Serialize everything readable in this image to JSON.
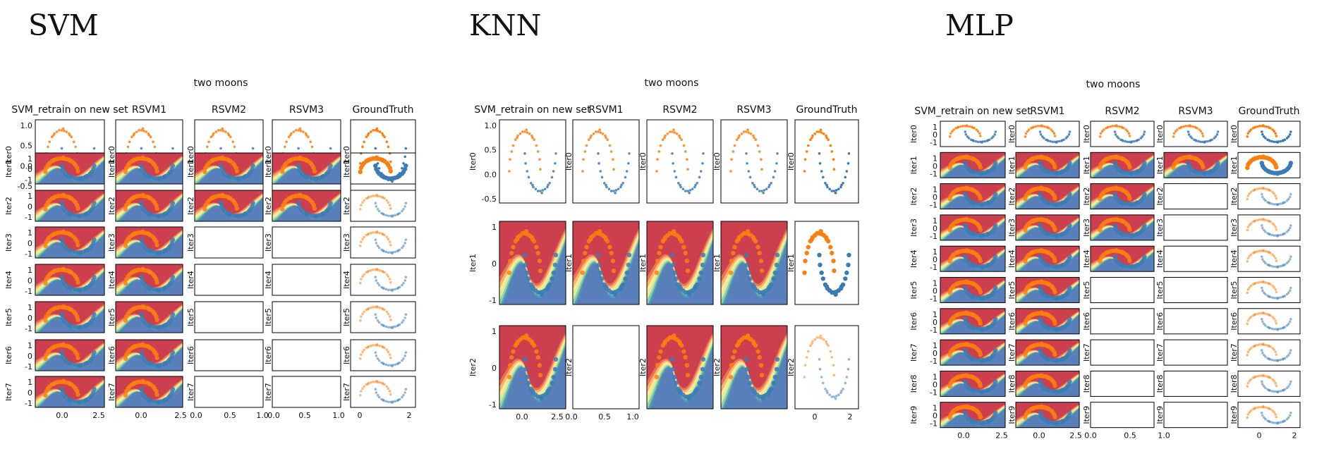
{
  "figure_title": "two moons",
  "column_titles": [
    "SVM_retrain on new set",
    "RSVM1",
    "RSVM2",
    "RSVM3",
    "GroundTruth"
  ],
  "colors": {
    "class0": "#ff7f0e",
    "class1": "#3b7bb5",
    "cmap": [
      "#cc3f4e",
      "#e8734f",
      "#f9b472",
      "#fde99a",
      "#d7ef9b",
      "#8fcfa5",
      "#4f9fb4",
      "#5a80bb"
    ]
  },
  "panels": [
    {
      "id": "svm",
      "heading": "SVM",
      "rows": [
        "Iter0",
        "Iter1",
        "Iter2",
        "Iter3",
        "Iter4",
        "Iter5",
        "Iter6",
        "Iter7"
      ],
      "filled": {
        "Iter0": [
          1,
          1,
          1,
          1,
          1
        ],
        "Iter1": [
          1,
          1,
          1,
          1,
          1
        ],
        "Iter2": [
          1,
          1,
          1,
          1,
          1
        ],
        "Iter3": [
          1,
          1,
          0,
          0,
          1
        ],
        "Iter4": [
          1,
          1,
          0,
          0,
          1
        ],
        "Iter5": [
          1,
          1,
          0,
          0,
          1
        ],
        "Iter6": [
          1,
          1,
          0,
          0,
          1
        ],
        "Iter7": [
          1,
          1,
          0,
          0,
          1
        ]
      },
      "x_ticks": [
        "0.0",
        "2.5",
        "0.0",
        "2.5",
        "0.0",
        "0.5",
        "1.0",
        "0.0",
        "0.5",
        "1.0",
        "0",
        "2"
      ],
      "y_ticks_iter0": [
        "1.0",
        "0.5",
        "0.0",
        "-0.5"
      ],
      "y_ticks_small": [
        "1",
        "0",
        "-1"
      ]
    },
    {
      "id": "knn",
      "heading": "KNN",
      "rows": [
        "Iter0",
        "Iter1",
        "Iter2"
      ],
      "filled": {
        "Iter0": [
          1,
          1,
          1,
          1,
          1
        ],
        "Iter1": [
          1,
          1,
          1,
          1,
          1
        ],
        "Iter2": [
          1,
          0,
          1,
          1,
          1
        ]
      },
      "x_ticks": [
        "0.0",
        "2.5",
        "0.0",
        "0.5",
        "1.0",
        "0",
        "2"
      ],
      "y_ticks_iter0": [
        "1.0",
        "0.5",
        "0.0",
        "-0.5"
      ],
      "y_ticks_iter1": [
        "1",
        "0",
        "-1"
      ]
    },
    {
      "id": "mlp",
      "heading": "MLP",
      "rows": [
        "Iter0",
        "Iter1",
        "Iter2",
        "Iter3",
        "Iter4",
        "Iter5",
        "Iter6",
        "Iter7",
        "Iter8",
        "Iter9"
      ],
      "filled": {
        "Iter0": [
          1,
          1,
          1,
          1,
          1
        ],
        "Iter1": [
          1,
          1,
          1,
          1,
          1
        ],
        "Iter2": [
          1,
          1,
          1,
          0,
          1
        ],
        "Iter3": [
          1,
          1,
          1,
          0,
          1
        ],
        "Iter4": [
          1,
          1,
          1,
          0,
          1
        ],
        "Iter5": [
          1,
          1,
          0,
          0,
          1
        ],
        "Iter6": [
          1,
          1,
          0,
          0,
          1
        ],
        "Iter7": [
          1,
          1,
          0,
          0,
          1
        ],
        "Iter8": [
          1,
          1,
          0,
          0,
          1
        ],
        "Iter9": [
          1,
          1,
          0,
          0,
          1
        ]
      },
      "x_ticks": [
        "0.0",
        "2.5",
        "0.0",
        "2.5",
        "0.0",
        "0.5",
        "1.0",
        "0",
        "2"
      ],
      "y_ticks_small": [
        "1",
        "0",
        "-1"
      ]
    }
  ],
  "chart_data": [
    {
      "type": "scatter",
      "title": "two moons",
      "series": [
        {
          "name": "",
          "color": "#ff7f0e",
          "x": [
            -1.0,
            -0.95,
            -0.85,
            -0.75,
            -0.6,
            -0.45,
            -0.3,
            -0.15,
            0.0,
            0.15,
            0.3,
            0.45,
            0.6,
            0.75,
            0.85,
            0.95,
            1.0,
            -0.5,
            0.1,
            0.5
          ],
          "y": [
            0.0,
            0.3,
            0.5,
            0.65,
            0.8,
            0.9,
            0.95,
            1.0,
            1.0,
            0.98,
            0.95,
            0.9,
            0.8,
            0.65,
            0.5,
            0.3,
            0.05,
            0.85,
            1.05,
            0.85
          ]
        },
        {
          "name": "",
          "color": "#3b7bb5",
          "x": [
            0.0,
            0.05,
            0.15,
            0.25,
            0.4,
            0.55,
            0.7,
            0.85,
            1.0,
            1.15,
            1.3,
            1.45,
            1.6,
            1.75,
            1.85,
            1.95,
            2.0,
            0.5,
            1.1,
            1.5
          ],
          "y": [
            0.45,
            0.2,
            0.0,
            -0.15,
            -0.3,
            -0.4,
            -0.45,
            -0.5,
            -0.5,
            -0.48,
            -0.45,
            -0.4,
            -0.3,
            -0.15,
            0.0,
            0.2,
            0.45,
            -0.35,
            -0.55,
            -0.35
          ]
        }
      ],
      "xlim": [
        -1.5,
        2.5
      ],
      "ylim": [
        -0.75,
        1.25
      ]
    }
  ]
}
